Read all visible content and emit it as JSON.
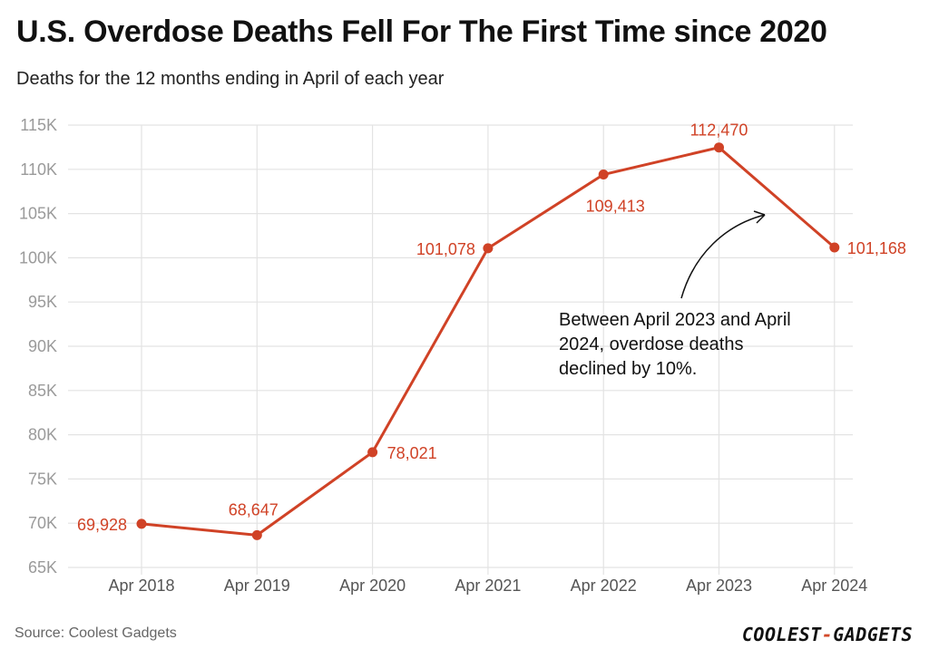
{
  "title": "U.S. Overdose Deaths Fell For The First Time since 2020",
  "subtitle": "Deaths for the 12 months ending in April of each year",
  "source": "Source: Coolest Gadgets",
  "logo": {
    "part1": "COOLEST",
    "dash": "-",
    "part2": "GADGETS"
  },
  "annotation": "Between April 2023 and April 2024, overdose deaths declined by 10%.",
  "colors": {
    "line": "#d04226",
    "grid": "#e3e3e3",
    "tick": "#9a9a9a"
  },
  "chart_data": {
    "type": "line",
    "title": "U.S. Overdose Deaths Fell For The First Time since 2020",
    "subtitle": "Deaths for the 12 months ending in April of each year",
    "categories": [
      "Apr 2018",
      "Apr 2019",
      "Apr 2020",
      "Apr 2021",
      "Apr 2022",
      "Apr 2023",
      "Apr 2024"
    ],
    "series": [
      {
        "values": [
          69928,
          68647,
          78021,
          101078,
          109413,
          112470,
          101168
        ]
      }
    ],
    "data_labels": [
      "69,928",
      "68,647",
      "78,021",
      "101,078",
      "109,413",
      "112,470",
      "101,168"
    ],
    "yticks": [
      65000,
      70000,
      75000,
      80000,
      85000,
      90000,
      95000,
      100000,
      105000,
      110000,
      115000
    ],
    "ytick_labels": [
      "65K",
      "70K",
      "75K",
      "80K",
      "85K",
      "90K",
      "95K",
      "100K",
      "105K",
      "110K",
      "115K"
    ],
    "ylim": [
      65000,
      115000
    ],
    "grid": true
  }
}
